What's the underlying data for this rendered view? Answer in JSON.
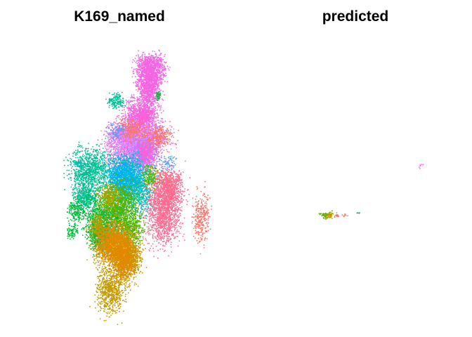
{
  "chart_data": [
    {
      "type": "scatter",
      "title": "K169_named",
      "xlabel": "",
      "ylabel": "",
      "axes_visible": false,
      "grid": false,
      "legend": "none",
      "clusters": [
        {
          "color": "#F564E3",
          "blobs": [
            [
              66,
              8,
              5,
              4,
              1200
            ],
            [
              65,
              16,
              4,
              4,
              700
            ],
            [
              61,
              25,
              6,
              4,
              800
            ],
            [
              60,
              33,
              10,
              4,
              900
            ],
            [
              56,
              38,
              9,
              6,
              1000
            ]
          ]
        },
        {
          "color": "#D98CFF",
          "blobs": [
            [
              60,
              34,
              10,
              4,
              500
            ],
            [
              56,
              39,
              9,
              6,
              600
            ]
          ]
        },
        {
          "color": "#B385FF",
          "blobs": [
            [
              62,
              41,
              5,
              5,
              800
            ]
          ]
        },
        {
          "color": "#F8766D",
          "blobs": [
            [
              56,
              31,
              5,
              3,
              300
            ],
            [
              70,
              34,
              5,
              3,
              300
            ],
            [
              74,
              50,
              4,
              2,
              100
            ],
            [
              93,
              65,
              3,
              7,
              300
            ]
          ]
        },
        {
          "color": "#619CFF",
          "blobs": [
            [
              48,
              32,
              3,
              2,
              100
            ],
            [
              75,
              44,
              3,
              2,
              80
            ]
          ]
        },
        {
          "color": "#00BFC4",
          "blobs": [
            [
              53,
              50,
              7,
              6,
              1100
            ],
            [
              60,
              54,
              6,
              7,
              700
            ]
          ]
        },
        {
          "color": "#00B0F6",
          "blobs": [
            [
              52,
              49,
              6,
              5,
              600
            ],
            [
              28,
              44,
              3,
              1,
              40
            ]
          ]
        },
        {
          "color": "#FF6C91",
          "blobs": [
            [
              73,
              62,
              6,
              9,
              1500
            ],
            [
              76,
              54,
              5,
              5,
              600
            ]
          ]
        },
        {
          "color": "#00C094",
          "blobs": [
            [
              34,
              47,
              7,
              6,
              1000
            ],
            [
              32,
              57,
              4,
              3,
              400
            ],
            [
              48,
              20,
              3,
              2,
              150
            ]
          ]
        },
        {
          "color": "#00BA38",
          "blobs": [
            [
              43,
              65,
              8,
              6,
              1000
            ],
            [
              39,
              72,
              4,
              4,
              500
            ],
            [
              27,
              62,
              3,
              3,
              200
            ],
            [
              25,
              70,
              2,
              2,
              80
            ],
            [
              70,
              18,
              1,
              1,
              40
            ]
          ]
        },
        {
          "color": "#53B400",
          "blobs": [
            [
              50,
              60,
              7,
              6,
              900
            ],
            [
              55,
              70,
              5,
              4,
              500
            ],
            [
              66,
              49,
              3,
              3,
              150
            ]
          ]
        },
        {
          "color": "#A3A500",
          "blobs": [
            [
              44,
              57,
              4,
              3,
              300
            ],
            [
              38,
              68,
              3,
              3,
              200
            ]
          ]
        },
        {
          "color": "#C49A00",
          "blobs": [
            [
              44,
              74,
              6,
              6,
              800
            ],
            [
              52,
              80,
              5,
              7,
              1100
            ],
            [
              45,
              93,
              5,
              6,
              700
            ],
            [
              56,
              80,
              4,
              4,
              400
            ]
          ]
        },
        {
          "color": "#E58700",
          "blobs": [
            [
              45,
              75,
              5,
              5,
              600
            ],
            [
              52,
              80,
              4,
              6,
              700
            ]
          ]
        },
        {
          "color": "#FB61D7",
          "blobs": [
            [
              64,
              40,
              4,
              3,
              300
            ],
            [
              63,
              26,
              3,
              2,
              200
            ]
          ]
        }
      ]
    },
    {
      "type": "scatter",
      "title": "predicted",
      "xlabel": "",
      "ylabel": "",
      "axes_visible": false,
      "grid": false,
      "legend": "none",
      "clusters": [
        {
          "color": "#53B400",
          "blobs": [
            [
              34,
              64,
              2,
              0.8,
              60
            ]
          ]
        },
        {
          "color": "#C49A00",
          "blobs": [
            [
              36,
              64,
              1.5,
              0.8,
              40
            ]
          ]
        },
        {
          "color": "#F8766D",
          "blobs": [
            [
              40,
              64,
              1,
              0.6,
              15
            ],
            [
              44,
              64,
              0.8,
              0.4,
              8
            ]
          ]
        },
        {
          "color": "#00BA38",
          "blobs": [
            [
              51,
              63,
              0.5,
              0.3,
              4
            ]
          ]
        },
        {
          "color": "#F564E3",
          "blobs": [
            [
              84,
              45,
              0.6,
              0.6,
              6
            ]
          ]
        }
      ]
    }
  ]
}
